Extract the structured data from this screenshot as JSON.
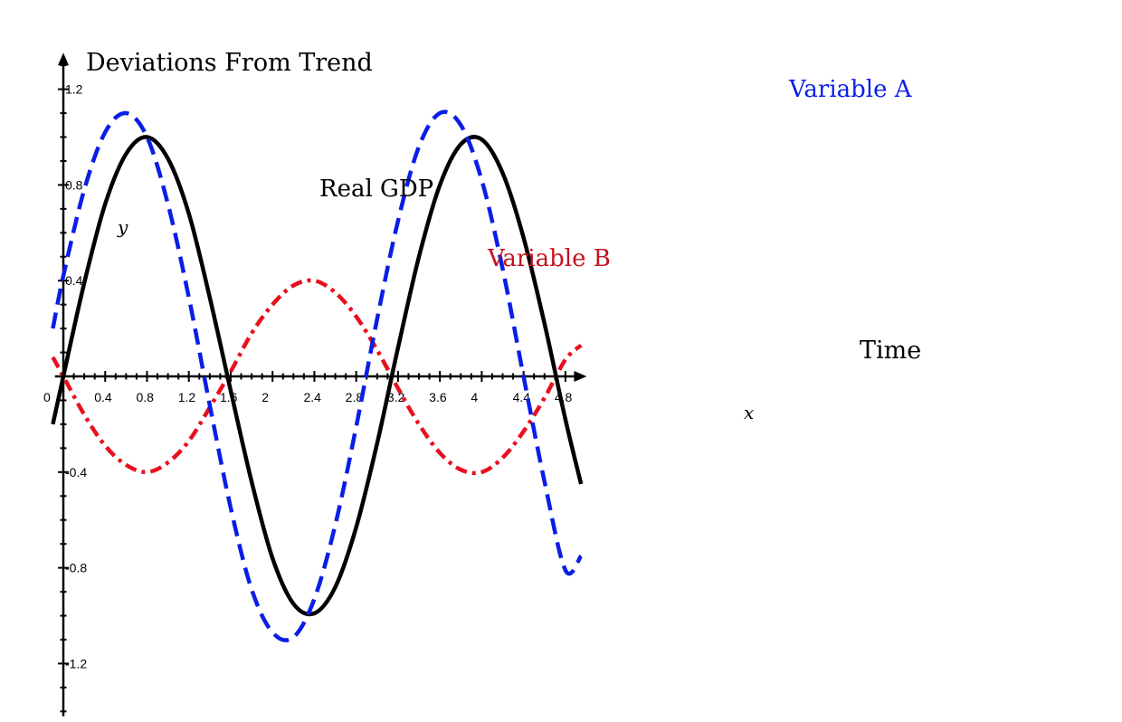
{
  "chart_data": {
    "type": "line",
    "ylabel": "Deviations From Trend",
    "xlabel": "Time",
    "x_var": "x",
    "y_var": "y",
    "xlim": [
      -0.08,
      4.9
    ],
    "ylim": [
      -1.42,
      1.36
    ],
    "x_ticks": [
      0,
      0.4,
      0.8,
      1.2,
      1.6,
      2,
      2.4,
      2.8,
      3.2,
      3.6,
      4,
      4.4,
      4.8
    ],
    "x_tick_labels": [
      "0",
      "0.4",
      "0.8",
      "1.2",
      "1.6",
      "2",
      "2.4",
      "2.8",
      "3.2",
      "3.6",
      "4",
      "4.4",
      "4.8"
    ],
    "y_ticks": [
      1.2,
      0.8,
      0.4,
      -0.4,
      -0.8,
      -1.2
    ],
    "y_tick_labels": [
      "1.2",
      "0.8",
      "0.4",
      "-0.4",
      "-0.8",
      "-1.2"
    ],
    "minor_step": 0.1,
    "grid": false,
    "series": [
      {
        "name": "Real GDP",
        "color": "#000000",
        "style": "solid",
        "x": [
          -0.1,
          0,
          0.2,
          0.4,
          0.6,
          0.8,
          1.0,
          1.2,
          1.4,
          1.6,
          1.8,
          2.0,
          2.2,
          2.4,
          2.6,
          2.8,
          3.0,
          3.2,
          3.4,
          3.6,
          3.8,
          4.0,
          4.2,
          4.4,
          4.6,
          4.8,
          4.95
        ],
        "values": [
          -0.2,
          0,
          0.39,
          0.72,
          0.93,
          1.0,
          0.91,
          0.68,
          0.33,
          -0.06,
          -0.44,
          -0.76,
          -0.95,
          -0.99,
          -0.88,
          -0.63,
          -0.28,
          0.12,
          0.5,
          0.8,
          0.97,
          0.99,
          0.85,
          0.58,
          0.22,
          -0.18,
          -0.45
        ]
      },
      {
        "name": "Variable A",
        "color": "#0a1ee6",
        "style": "dashed",
        "x": [
          -0.1,
          0,
          0.2,
          0.4,
          0.6,
          0.8,
          1.0,
          1.2,
          1.4,
          1.6,
          1.8,
          2.0,
          2.2,
          2.4,
          2.6,
          2.8,
          3.0,
          3.2,
          3.4,
          3.6,
          3.8,
          4.0,
          4.2,
          4.4,
          4.6,
          4.8,
          4.95
        ],
        "values": [
          0.2,
          0.42,
          0.78,
          1.02,
          1.1,
          1.0,
          0.72,
          0.33,
          -0.12,
          -0.55,
          -0.89,
          -1.07,
          -1.09,
          -0.93,
          -0.62,
          -0.21,
          0.24,
          0.65,
          0.96,
          1.1,
          1.05,
          0.82,
          0.45,
          0.0,
          -0.44,
          -0.81,
          -0.75
        ]
      },
      {
        "name": "Variable B",
        "color": "#e8101e",
        "style": "dashdot",
        "x": [
          -0.1,
          0,
          0.2,
          0.4,
          0.6,
          0.8,
          1.0,
          1.2,
          1.4,
          1.6,
          1.8,
          2.0,
          2.2,
          2.4,
          2.6,
          2.8,
          3.0,
          3.2,
          3.4,
          3.6,
          3.8,
          4.0,
          4.2,
          4.4,
          4.6,
          4.8,
          4.95
        ],
        "values": [
          0.08,
          0,
          -0.16,
          -0.29,
          -0.37,
          -0.4,
          -0.36,
          -0.27,
          -0.13,
          0.02,
          0.18,
          0.3,
          0.38,
          0.4,
          0.35,
          0.25,
          0.11,
          -0.05,
          -0.2,
          -0.32,
          -0.39,
          -0.4,
          -0.34,
          -0.23,
          -0.09,
          0.07,
          0.13
        ]
      }
    ]
  }
}
